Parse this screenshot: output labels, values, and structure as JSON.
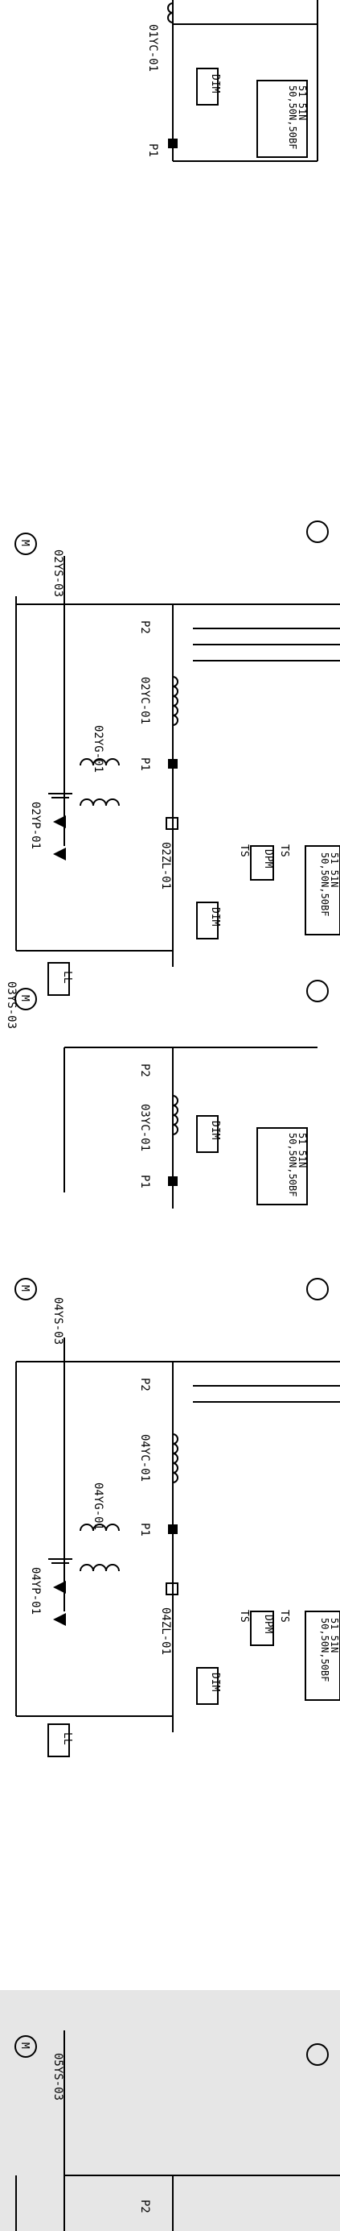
{
  "diagram": {
    "title": "",
    "background_color": "#ffffff",
    "shaded_panel_color": "#e6e6e6",
    "line_color": "#000000",
    "sections": [
      {
        "id": "s01",
        "labels": {
          "pt": "01YC-01",
          "p1": "P1",
          "meter": "DIM",
          "relay_line1": "50,50N,50BF",
          "relay_line2": "51 51N"
        }
      },
      {
        "id": "s02",
        "labels": {
          "ys": "02YS-03",
          "p2": "P2",
          "p1": "P1",
          "yc": "02YC-01",
          "yg": "02YG-01",
          "yp": "02YP-01",
          "zl": "02ZL-01",
          "ts1": "TS",
          "ts2": "TS",
          "dpm": "DPM",
          "dim": "DIM",
          "ll": "LL",
          "relay_line1": "50,50N,50BF",
          "relay_line2": "51 51N",
          "motor": "M"
        }
      },
      {
        "id": "s03",
        "labels": {
          "ys": "03YS-03",
          "p2": "P2",
          "p1": "P1",
          "yc": "03YC-01",
          "dim": "DIM",
          "relay_line1": "50,50N,50BF",
          "relay_line2": "51 51N",
          "motor": "M"
        }
      },
      {
        "id": "s04",
        "labels": {
          "ys": "04YS-03",
          "p2": "P2",
          "p1": "P1",
          "yc": "04YC-01",
          "yg": "04YG-01",
          "yp": "04YP-01",
          "zl": "04ZL-01",
          "ts1": "TS",
          "ts2": "TS",
          "dpm": "DPM",
          "dim": "DIM",
          "ll": "LL",
          "relay_line1": "50,50N,50BF",
          "relay_line2": "51 51N",
          "motor": "M"
        }
      },
      {
        "id": "s05",
        "labels": {
          "ys": "05YS-03",
          "p2": "P2",
          "motor": "M"
        }
      }
    ]
  }
}
